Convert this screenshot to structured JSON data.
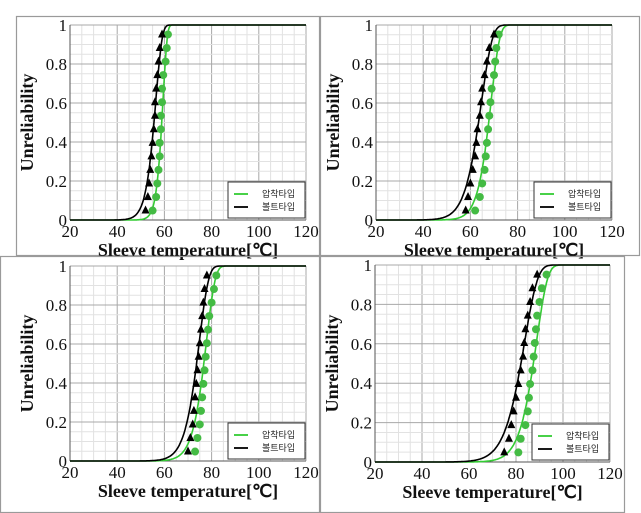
{
  "chart_data": [
    {
      "type": "scatter",
      "xlabel": "Sleeve temperature[℃]",
      "ylabel": "Unreliability",
      "xlim": [
        20,
        120
      ],
      "ylim": [
        0,
        1
      ],
      "xticks": [
        "20",
        "40",
        "60",
        "80",
        "100",
        "120"
      ],
      "yticks": [
        "0",
        "0.2",
        "0.4",
        "0.6",
        "0.8",
        "1"
      ],
      "grid": true,
      "legend_position": "bottom-right",
      "series": [
        {
          "name": "압착타입",
          "color": "#33cc33",
          "marker": "circle",
          "fit": {
            "beta": 35,
            "eta": 59.5
          },
          "x": [
            55,
            56.5,
            57,
            57.5,
            58,
            58,
            58.5,
            58.5,
            59,
            59,
            59.5,
            60.5,
            61,
            61.5
          ]
        },
        {
          "name": "볼트타입",
          "color": "#000000",
          "marker": "triangle",
          "fit": {
            "beta": 22,
            "eta": 56.5
          },
          "x": [
            52,
            53,
            53.5,
            54,
            54.5,
            55,
            55.5,
            56,
            56,
            56.5,
            57,
            57.5,
            58,
            59
          ]
        }
      ]
    },
    {
      "type": "scatter",
      "xlabel": "Sleeve temperature[℃]",
      "ylabel": "Unreliability",
      "xlim": [
        20,
        120
      ],
      "ylim": [
        0,
        1
      ],
      "xticks": [
        "20",
        "40",
        "60",
        "80",
        "100",
        "120"
      ],
      "yticks": [
        "0",
        "0.2",
        "0.4",
        "0.6",
        "0.8",
        "1"
      ],
      "grid": true,
      "legend_position": "bottom-right",
      "series": [
        {
          "name": "압착타입",
          "color": "#33cc33",
          "marker": "circle",
          "fit": {
            "beta": 20,
            "eta": 69
          },
          "x": [
            62,
            64,
            65,
            66,
            66.5,
            67,
            67.5,
            68,
            68.5,
            69,
            70,
            70.5,
            71,
            72
          ]
        },
        {
          "name": "볼트타입",
          "color": "#000000",
          "marker": "triangle",
          "fit": {
            "beta": 15,
            "eta": 65
          },
          "x": [
            58,
            59,
            60,
            61,
            62,
            62.5,
            63,
            64,
            64.5,
            65,
            66,
            67,
            68,
            70
          ]
        }
      ]
    },
    {
      "type": "scatter",
      "xlabel": "Sleeve temperature[℃]",
      "ylabel": "Unreliability",
      "xlim": [
        20,
        120
      ],
      "ylim": [
        0,
        1
      ],
      "xticks": [
        "20",
        "40",
        "60",
        "80",
        "100",
        "120"
      ],
      "yticks": [
        "0",
        "0.2",
        "0.4",
        "0.6",
        "0.8",
        "1"
      ],
      "grid": true,
      "legend_position": "bottom-right",
      "series": [
        {
          "name": "압착타입",
          "color": "#33cc33",
          "marker": "circle",
          "fit": {
            "beta": 22,
            "eta": 78
          },
          "x": [
            73,
            74,
            75,
            75.5,
            76,
            76.5,
            77,
            77.5,
            78,
            78.5,
            79,
            80,
            81,
            82
          ]
        },
        {
          "name": "볼트타입",
          "color": "#000000",
          "marker": "triangle",
          "fit": {
            "beta": 20,
            "eta": 75
          },
          "x": [
            70,
            71,
            72,
            72.5,
            73,
            73.5,
            74,
            74.5,
            75,
            75.5,
            76,
            76.5,
            77,
            78
          ]
        }
      ]
    },
    {
      "type": "scatter",
      "xlabel": "Sleeve temperature[℃]",
      "ylabel": "Unreliability",
      "xlim": [
        20,
        120
      ],
      "ylim": [
        0,
        1
      ],
      "xticks": [
        "20",
        "40",
        "60",
        "80",
        "100",
        "120"
      ],
      "yticks": [
        "0",
        "0.2",
        "0.4",
        "0.6",
        "0.8",
        "1"
      ],
      "grid": true,
      "legend_position": "bottom-right",
      "series": [
        {
          "name": "압착타입",
          "color": "#33cc33",
          "marker": "circle",
          "fit": {
            "beta": 20,
            "eta": 89
          },
          "x": [
            81,
            82,
            84,
            85,
            85.5,
            86,
            87,
            87.5,
            88,
            88.5,
            89,
            90,
            91,
            93
          ]
        },
        {
          "name": "볼트타입",
          "color": "#000000",
          "marker": "triangle",
          "fit": {
            "beta": 16,
            "eta": 84
          },
          "x": [
            75,
            77,
            78,
            79,
            80,
            81,
            82,
            83,
            83.5,
            84,
            85,
            86,
            87,
            89
          ]
        }
      ]
    }
  ]
}
